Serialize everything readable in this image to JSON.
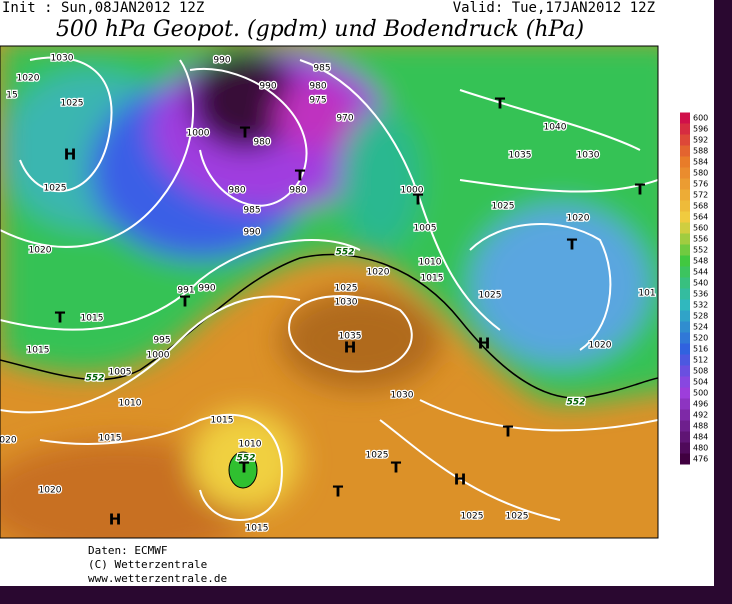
{
  "header": {
    "init": "Init : Sun,08JAN2012 12Z",
    "valid": "Valid: Tue,17JAN2012 12Z",
    "title": "500 hPa Geopot. (gpdm) und Bodendruck (hPa)"
  },
  "colorbar": {
    "ticks": [
      600,
      596,
      592,
      588,
      584,
      580,
      576,
      572,
      568,
      564,
      560,
      556,
      552,
      548,
      544,
      540,
      536,
      532,
      528,
      524,
      520,
      516,
      512,
      508,
      504,
      500,
      496,
      492,
      488,
      484,
      480,
      476
    ]
  },
  "map": {
    "labels": [
      "1030",
      "1020",
      "1025",
      "15",
      "H",
      "1025",
      "1020",
      "T",
      "1015",
      "1015",
      "552",
      "1005",
      "1010",
      "1015",
      "020",
      "1020",
      "H",
      "1000",
      "995",
      "991",
      "990",
      "T",
      "1000",
      "T",
      "990",
      "990",
      "985",
      "980",
      "975",
      "970",
      "980",
      "980",
      "980",
      "T",
      "985",
      "990",
      "552",
      "1020",
      "1025",
      "1030",
      "1035",
      "H",
      "1030",
      "1000",
      "T",
      "1005",
      "1010",
      "1015",
      "1040",
      "1035",
      "1030",
      "T",
      "T",
      "1025",
      "1020",
      "T",
      "1025",
      "101",
      "1020",
      "H",
      "552",
      "T",
      "1015",
      "1010",
      "552",
      "T",
      "1025",
      "T",
      "T",
      "H",
      "1025",
      "1025",
      "1015"
    ]
  },
  "footer": {
    "lines": [
      "Daten: ECMWF",
      "(C) Wetterzentrale",
      "www.wetterzentrale.de"
    ]
  }
}
